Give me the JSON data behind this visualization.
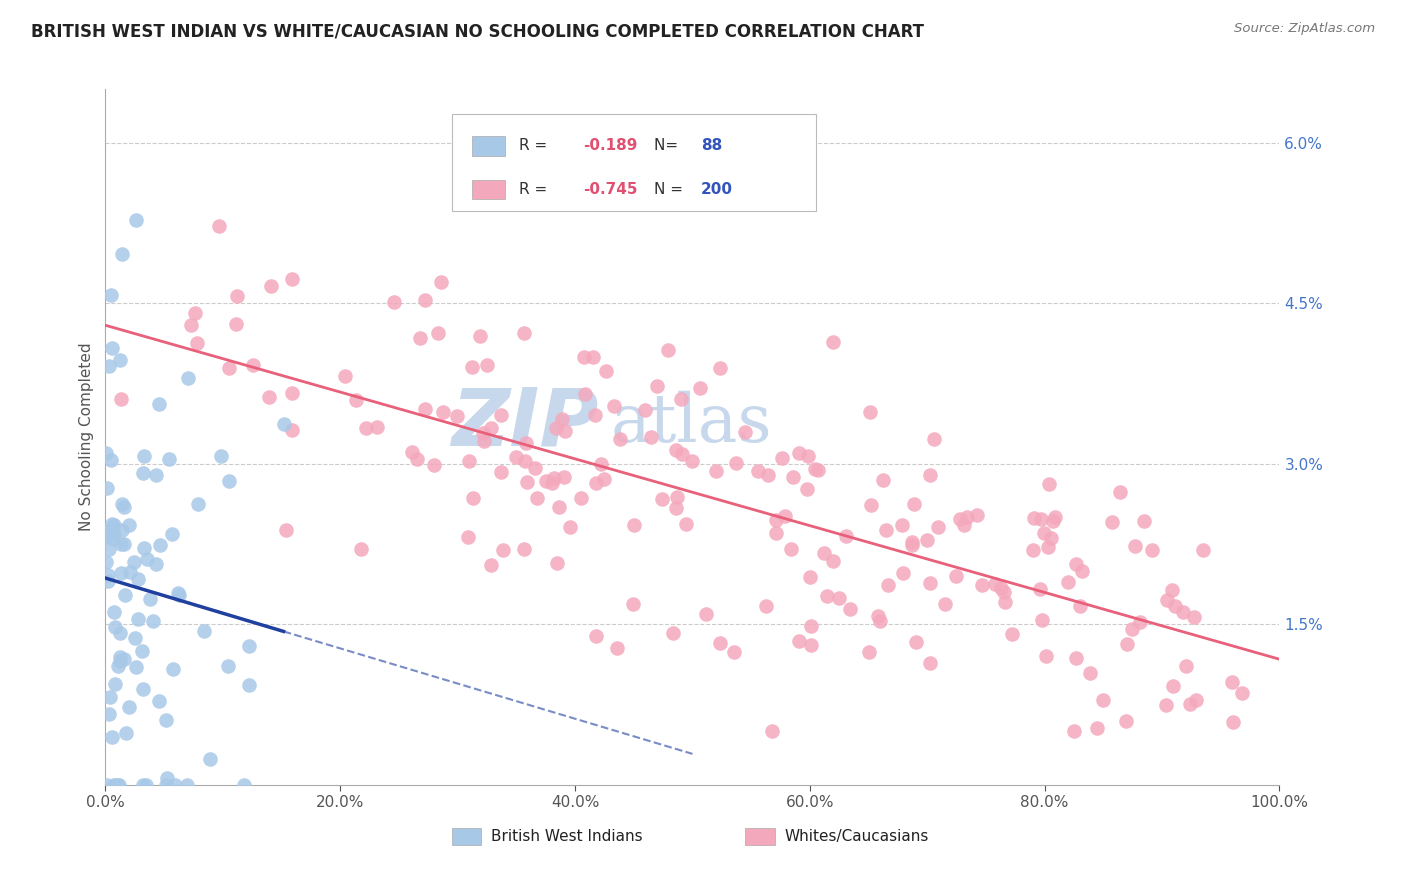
{
  "title": "BRITISH WEST INDIAN VS WHITE/CAUCASIAN NO SCHOOLING COMPLETED CORRELATION CHART",
  "source_text": "Source: ZipAtlas.com",
  "ylabel": "No Schooling Completed",
  "x_min": 0.0,
  "x_max": 1.0,
  "y_min": 0.0,
  "y_max": 0.065,
  "x_tick_labels": [
    "0.0%",
    "20.0%",
    "40.0%",
    "60.0%",
    "80.0%",
    "100.0%"
  ],
  "x_tick_values": [
    0.0,
    0.2,
    0.4,
    0.6,
    0.8,
    1.0
  ],
  "y_tick_labels": [
    "1.5%",
    "3.0%",
    "4.5%",
    "6.0%"
  ],
  "y_tick_values": [
    0.015,
    0.03,
    0.045,
    0.06
  ],
  "legend_blue_r": "-0.189",
  "legend_blue_n": "88",
  "legend_pink_r": "-0.745",
  "legend_pink_n": "200",
  "legend_label_blue": "British West Indians",
  "legend_label_pink": "Whites/Caucasians",
  "blue_color": "#A8C8E8",
  "pink_color": "#F4A8BC",
  "blue_line_color": "#2040A0",
  "pink_line_color": "#E8607A",
  "background_color": "#FFFFFF",
  "grid_color": "#CCCCCC",
  "title_color": "#222222",
  "axis_color": "#555555",
  "ytick_color": "#4477CC",
  "legend_r_color": "#E05070",
  "legend_n_color": "#3355BB",
  "watermark_zip_color": "#C8D8EC",
  "watermark_atlas_color": "#C8D8EC",
  "blue_seed": 42,
  "pink_seed": 7
}
